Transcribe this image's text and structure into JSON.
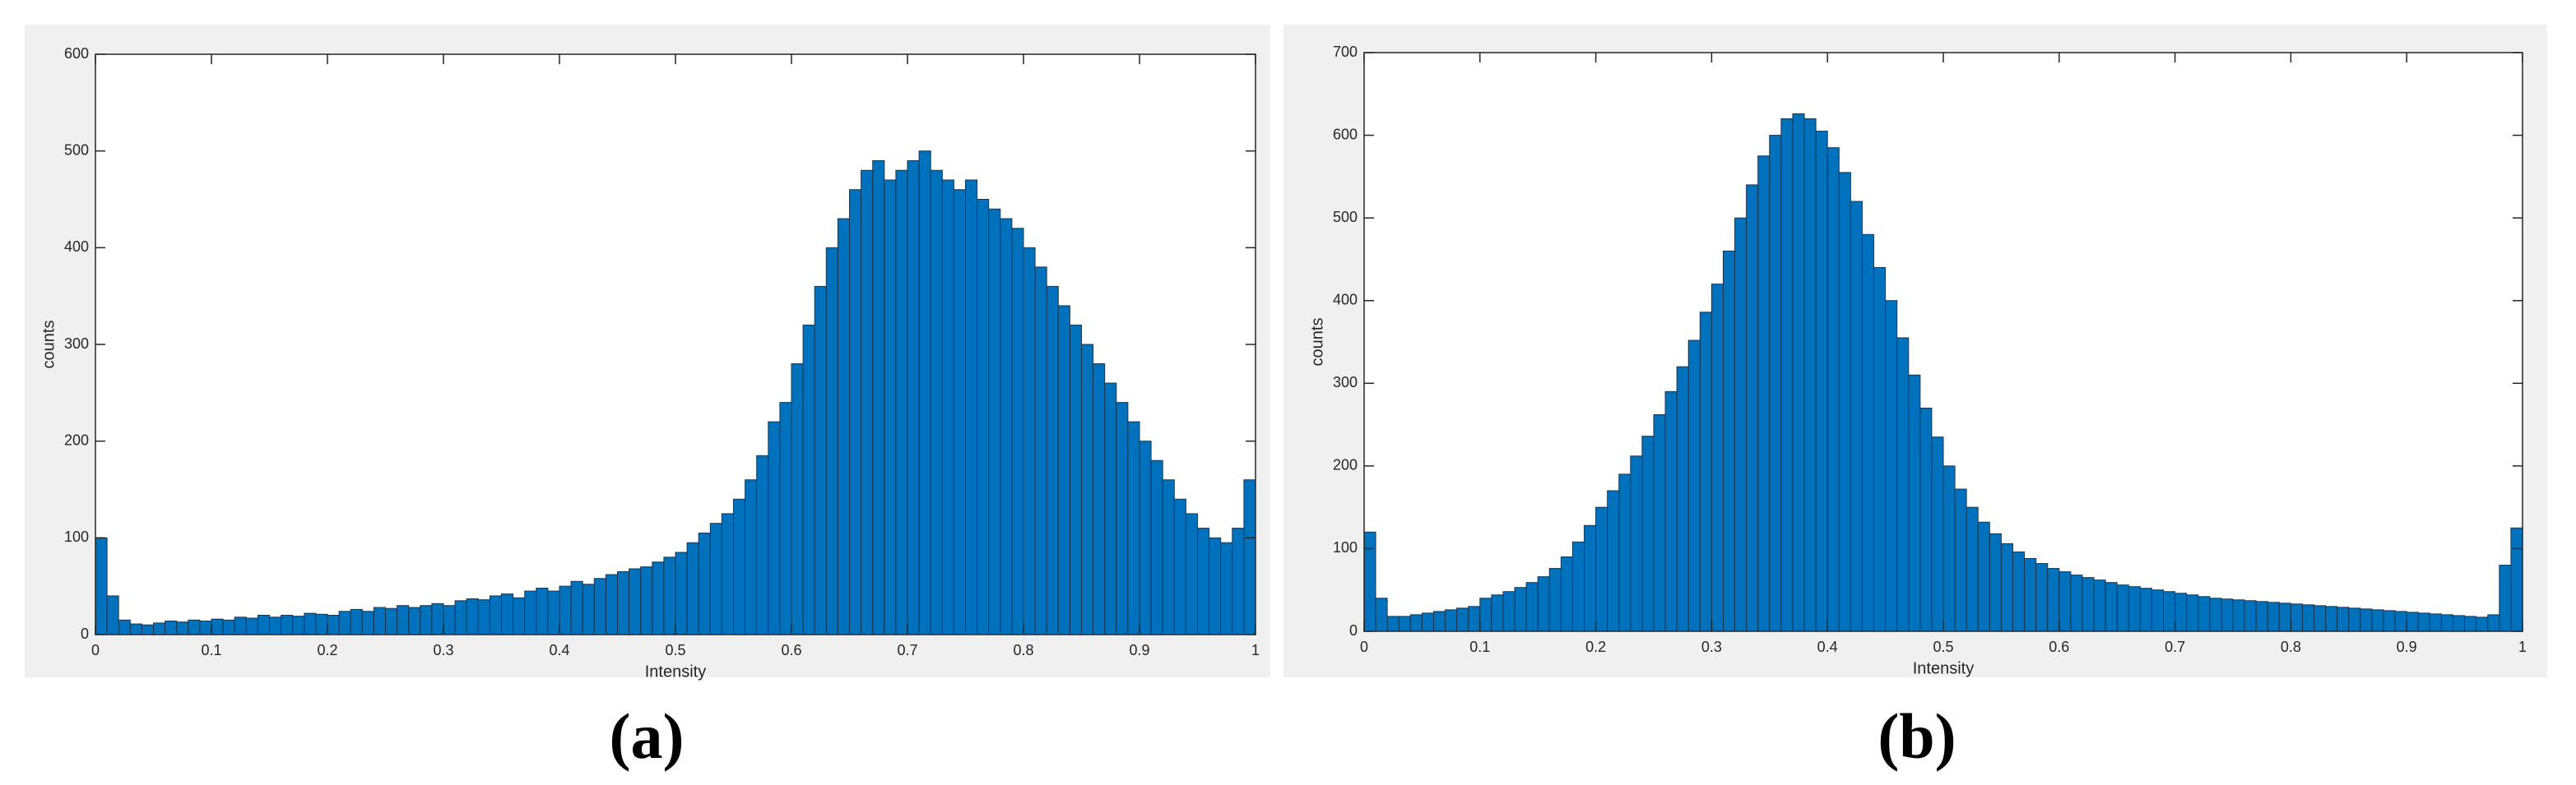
{
  "chart_data": [
    {
      "type": "histogram",
      "panel_label": "(a)",
      "xlabel": "Intensity",
      "ylabel": "counts",
      "color": "#0072bd",
      "bins": [
        0,
        0.01,
        0.02,
        0.03,
        0.04,
        0.05,
        0.06,
        0.07,
        0.08,
        0.09,
        0.1,
        0.11,
        0.12,
        0.13,
        0.14,
        0.15,
        0.16,
        0.17,
        0.18,
        0.19,
        0.2,
        0.21,
        0.22,
        0.23,
        0.24,
        0.25,
        0.26,
        0.27,
        0.28,
        0.29,
        0.3,
        0.31,
        0.32,
        0.33,
        0.34,
        0.35,
        0.36,
        0.37,
        0.38,
        0.39,
        0.4,
        0.41,
        0.42,
        0.43,
        0.44,
        0.45,
        0.46,
        0.47,
        0.48,
        0.49,
        0.5,
        0.51,
        0.52,
        0.53,
        0.54,
        0.55,
        0.56,
        0.57,
        0.58,
        0.59,
        0.6,
        0.61,
        0.62,
        0.63,
        0.64,
        0.65,
        0.66,
        0.67,
        0.68,
        0.69,
        0.7,
        0.71,
        0.72,
        0.73,
        0.74,
        0.75,
        0.76,
        0.77,
        0.78,
        0.79,
        0.8,
        0.81,
        0.82,
        0.83,
        0.84,
        0.85,
        0.86,
        0.87,
        0.88,
        0.89,
        0.9,
        0.91,
        0.92,
        0.93,
        0.94,
        0.95,
        0.96,
        0.97,
        0.98,
        0.99,
        1
      ],
      "values": [
        100,
        40,
        15,
        11,
        10,
        12,
        14,
        13,
        15,
        14,
        16,
        15,
        18,
        17,
        20,
        18,
        20,
        19,
        22,
        21,
        20,
        24,
        26,
        24,
        28,
        27,
        30,
        28,
        30,
        32,
        30,
        35,
        37,
        36,
        40,
        42,
        38,
        45,
        48,
        45,
        50,
        55,
        52,
        58,
        62,
        65,
        68,
        70,
        75,
        80,
        85,
        95,
        105,
        115,
        125,
        140,
        160,
        185,
        220,
        240,
        280,
        320,
        360,
        400,
        430,
        460,
        480,
        490,
        470,
        480,
        490,
        500,
        480,
        470,
        460,
        470,
        450,
        440,
        430,
        420,
        400,
        380,
        360,
        340,
        320,
        300,
        280,
        260,
        240,
        220,
        200,
        180,
        160,
        140,
        125,
        110,
        100,
        95,
        110,
        160
      ],
      "xlim": [
        0,
        1
      ],
      "xticks": [
        0,
        0.1,
        0.2,
        0.3,
        0.4,
        0.5,
        0.6,
        0.7,
        0.8,
        0.9,
        1
      ],
      "ylim": [
        0,
        600
      ],
      "yticks": [
        0,
        100,
        200,
        300,
        400,
        500,
        600
      ]
    },
    {
      "type": "histogram",
      "panel_label": "(b)",
      "xlabel": "Intensity",
      "ylabel": "counts",
      "color": "#0072bd",
      "bins": [
        0,
        0.01,
        0.02,
        0.03,
        0.04,
        0.05,
        0.06,
        0.07,
        0.08,
        0.09,
        0.1,
        0.11,
        0.12,
        0.13,
        0.14,
        0.15,
        0.16,
        0.17,
        0.18,
        0.19,
        0.2,
        0.21,
        0.22,
        0.23,
        0.24,
        0.25,
        0.26,
        0.27,
        0.28,
        0.29,
        0.3,
        0.31,
        0.32,
        0.33,
        0.34,
        0.35,
        0.36,
        0.37,
        0.38,
        0.39,
        0.4,
        0.41,
        0.42,
        0.43,
        0.44,
        0.45,
        0.46,
        0.47,
        0.48,
        0.49,
        0.5,
        0.51,
        0.52,
        0.53,
        0.54,
        0.55,
        0.56,
        0.57,
        0.58,
        0.59,
        0.6,
        0.61,
        0.62,
        0.63,
        0.64,
        0.65,
        0.66,
        0.67,
        0.68,
        0.69,
        0.7,
        0.71,
        0.72,
        0.73,
        0.74,
        0.75,
        0.76,
        0.77,
        0.78,
        0.79,
        0.8,
        0.81,
        0.82,
        0.83,
        0.84,
        0.85,
        0.86,
        0.87,
        0.88,
        0.89,
        0.9,
        0.91,
        0.92,
        0.93,
        0.94,
        0.95,
        0.96,
        0.97,
        0.98,
        0.99,
        1
      ],
      "values": [
        120,
        40,
        18,
        18,
        20,
        22,
        24,
        26,
        28,
        30,
        40,
        44,
        48,
        53,
        59,
        66,
        76,
        90,
        108,
        128,
        150,
        170,
        190,
        212,
        236,
        262,
        290,
        320,
        352,
        386,
        420,
        460,
        500,
        540,
        575,
        600,
        620,
        626,
        620,
        605,
        585,
        555,
        520,
        480,
        440,
        400,
        355,
        310,
        270,
        235,
        200,
        172,
        150,
        132,
        118,
        106,
        96,
        88,
        82,
        76,
        72,
        68,
        65,
        62,
        59,
        56,
        54,
        52,
        50,
        48,
        46,
        44,
        42,
        40,
        39,
        38,
        37,
        36,
        35,
        34,
        33,
        32,
        31,
        30,
        29,
        28,
        27,
        26,
        25,
        24,
        23,
        22,
        21,
        20,
        19,
        18,
        17,
        20,
        80,
        125
      ],
      "xlim": [
        0,
        1
      ],
      "xticks": [
        0,
        0.1,
        0.2,
        0.3,
        0.4,
        0.5,
        0.6,
        0.7,
        0.8,
        0.9,
        1
      ],
      "ylim": [
        0,
        700
      ],
      "yticks": [
        0,
        100,
        200,
        300,
        400,
        500,
        600,
        700
      ]
    }
  ]
}
